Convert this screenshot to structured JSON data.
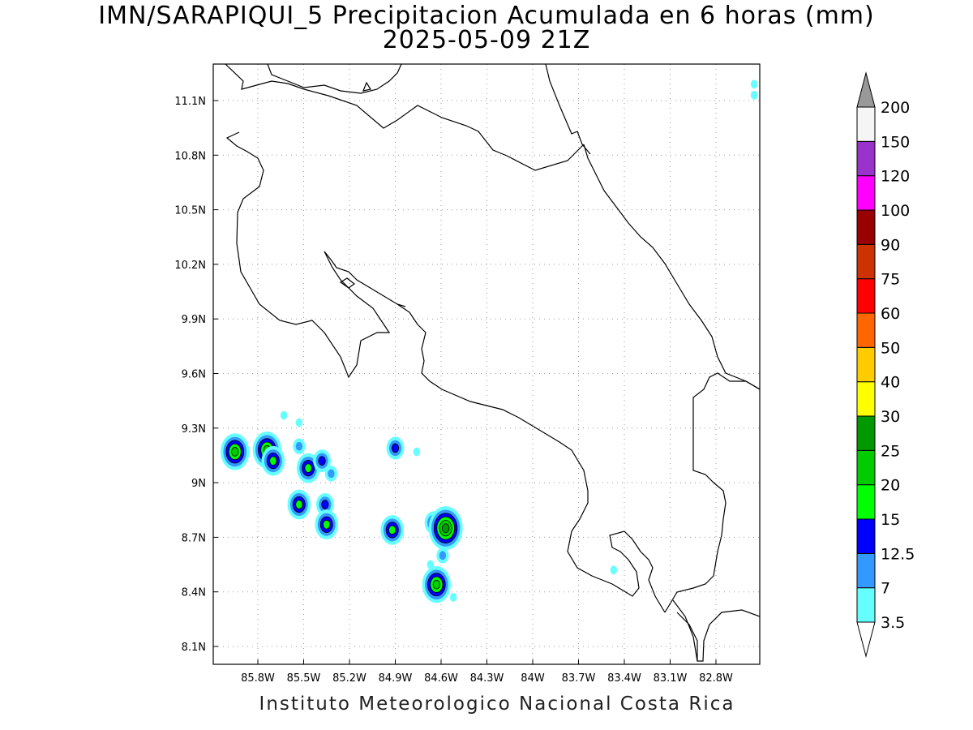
{
  "title": {
    "line1": "IMN/SARAPIQUI_5 Precipitacion Acumulada en 6 horas (mm)",
    "line2": "2025-05-09 21Z"
  },
  "footer": "Instituto Meteorologico Nacional Costa Rica",
  "map": {
    "lon_ticks": [
      "85.8W",
      "85.5W",
      "85.2W",
      "84.9W",
      "84.6W",
      "84.3W",
      "84W",
      "83.7W",
      "83.4W",
      "83.1W",
      "82.8W"
    ],
    "lat_ticks": [
      "11.1N",
      "10.8N",
      "10.5N",
      "10.2N",
      "9.9N",
      "9.6N",
      "9.3N",
      "9N",
      "8.7N",
      "8.4N",
      "8.1N"
    ],
    "grid": "dotted"
  },
  "colorbar": {
    "labels": [
      "3.5",
      "7",
      "12.5",
      "15",
      "20",
      "25",
      "30",
      "40",
      "50",
      "60",
      "75",
      "90",
      "100",
      "120",
      "150",
      "200"
    ],
    "colors": [
      "#66ffff",
      "#3399ff",
      "#0000ff",
      "#00ff00",
      "#00cc00",
      "#009900",
      "#ffff00",
      "#ffcc00",
      "#ff6600",
      "#ff0000",
      "#cc3300",
      "#990000",
      "#ff00ff",
      "#9933cc",
      "#f5f5f5"
    ],
    "over_color": "#999999",
    "under_color": "#ffffff"
  },
  "precip_cells": [
    {
      "lon": -85.95,
      "lat": 9.17,
      "level": 4
    },
    {
      "lon": -85.74,
      "lat": 9.18,
      "level": 4
    },
    {
      "lon": -85.7,
      "lat": 9.12,
      "level": 3
    },
    {
      "lon": -85.47,
      "lat": 9.08,
      "level": 3
    },
    {
      "lon": -85.38,
      "lat": 9.12,
      "level": 2
    },
    {
      "lon": -85.32,
      "lat": 9.05,
      "level": 1
    },
    {
      "lon": -85.53,
      "lat": 8.88,
      "level": 3
    },
    {
      "lon": -85.36,
      "lat": 8.88,
      "level": 2
    },
    {
      "lon": -85.35,
      "lat": 8.77,
      "level": 3
    },
    {
      "lon": -85.53,
      "lat": 9.2,
      "level": 1
    },
    {
      "lon": -85.53,
      "lat": 9.33,
      "level": 0
    },
    {
      "lon": -85.63,
      "lat": 9.37,
      "level": 0
    },
    {
      "lon": -84.9,
      "lat": 9.19,
      "level": 2
    },
    {
      "lon": -84.76,
      "lat": 9.17,
      "level": 0
    },
    {
      "lon": -84.92,
      "lat": 8.74,
      "level": 3
    },
    {
      "lon": -84.65,
      "lat": 8.78,
      "level": 2
    },
    {
      "lon": -84.57,
      "lat": 8.75,
      "level": 5
    },
    {
      "lon": -84.59,
      "lat": 8.6,
      "level": 1
    },
    {
      "lon": -84.67,
      "lat": 8.55,
      "level": 0
    },
    {
      "lon": -84.63,
      "lat": 8.44,
      "level": 4
    },
    {
      "lon": -84.52,
      "lat": 8.37,
      "level": 0
    },
    {
      "lon": -83.47,
      "lat": 8.52,
      "level": 0
    },
    {
      "lon": -82.55,
      "lat": 11.19,
      "level": 0
    },
    {
      "lon": -82.55,
      "lat": 11.13,
      "level": 0
    }
  ]
}
